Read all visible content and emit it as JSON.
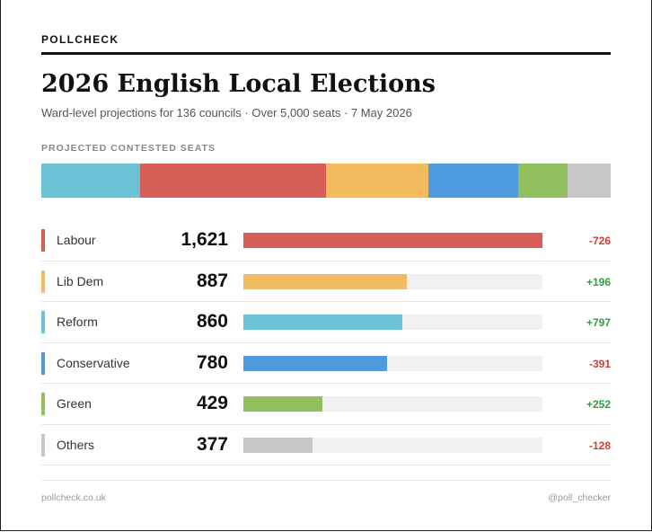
{
  "header": {
    "brand": "POLLCHECK",
    "title": "2026 English Local Elections",
    "subtitle": "Ward-level projections for 136 councils · Over 5,000 seats · 7 May 2026",
    "section_label": "PROJECTED CONTESTED SEATS"
  },
  "chart_data": {
    "type": "bar",
    "orientation": "horizontal",
    "categories": [
      "Labour",
      "Lib Dem",
      "Reform",
      "Conservative",
      "Green",
      "Others"
    ],
    "values": [
      1621,
      887,
      860,
      780,
      429,
      377
    ],
    "value_labels": [
      "1,621",
      "887",
      "860",
      "780",
      "429",
      "377"
    ],
    "changes": [
      "-726",
      "+196",
      "+797",
      "-391",
      "+252",
      "-128"
    ],
    "colors": [
      "#d75f57",
      "#f2bb5f",
      "#6cc3d6",
      "#4f9be0",
      "#92c05e",
      "#c6c6c6"
    ],
    "xlim": [
      0,
      1621
    ],
    "stacked_bar_order": [
      "Reform",
      "Labour",
      "Lib Dem",
      "Conservative",
      "Green",
      "Others"
    ]
  },
  "colors": {
    "positive": "#2f9e44",
    "negative": "#d43c35"
  },
  "footer": {
    "left": "pollcheck.co.uk",
    "right": "@poll_checker"
  }
}
